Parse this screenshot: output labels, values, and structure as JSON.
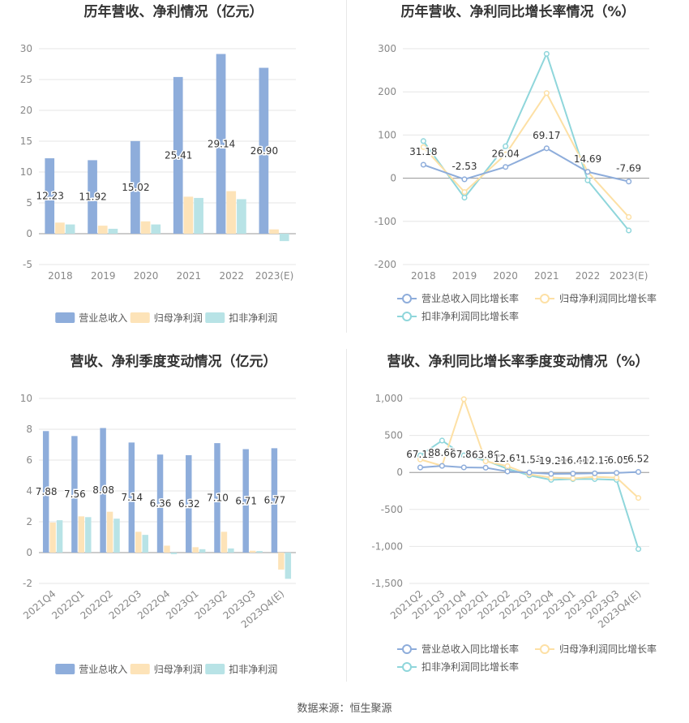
{
  "source": "数据来源：恒生聚源",
  "colors": {
    "revenue": "#8eaddb",
    "netprofit": "#fde3b8",
    "deducted": "#b8e3e6",
    "revenue_line": "#8eaddb",
    "netprofit_line": "#fde0a5",
    "deducted_line": "#8fd6db"
  },
  "chart_data": [
    {
      "type": "bar",
      "title": "历年营收、净利情况（亿元）",
      "categories": [
        "2018",
        "2019",
        "2020",
        "2021",
        "2022",
        "2023(E)"
      ],
      "series": [
        {
          "name": "营业总收入",
          "values": [
            12.23,
            11.92,
            15.02,
            25.41,
            29.14,
            26.9
          ]
        },
        {
          "name": "归母净利润",
          "values": [
            1.8,
            1.3,
            2.0,
            6.0,
            6.9,
            0.7
          ]
        },
        {
          "name": "扣非净利润",
          "values": [
            1.5,
            0.8,
            1.5,
            5.8,
            5.6,
            -1.2
          ]
        }
      ],
      "data_labels": [
        "12.23",
        "11.92",
        "15.02",
        "25.41",
        "29.14",
        "26.90"
      ],
      "ylim": [
        -5,
        30
      ],
      "yticks": [
        "-5",
        "0",
        "5",
        "10",
        "15",
        "20",
        "25",
        "30"
      ],
      "legend": "bottom"
    },
    {
      "type": "line",
      "title": "历年营收、净利同比增长率情况（%）",
      "categories": [
        "2018",
        "2019",
        "2020",
        "2021",
        "2022",
        "2023(E)"
      ],
      "series": [
        {
          "name": "营业总收入同比增长率",
          "values": [
            31.18,
            -2.53,
            26.04,
            69.17,
            14.69,
            -7.69
          ]
        },
        {
          "name": "归母净利润同比增长率",
          "values": [
            72,
            -32,
            55,
            197,
            15,
            -90
          ]
        },
        {
          "name": "扣非净利润同比增长率",
          "values": [
            86,
            -45,
            74,
            288,
            -5,
            -121
          ]
        }
      ],
      "data_labels": [
        "31.18",
        "-2.53",
        "26.04",
        "69.17",
        "14.69",
        "-7.69"
      ],
      "ylim": [
        -200,
        300
      ],
      "yticks": [
        "-200",
        "-100",
        "0",
        "100",
        "200",
        "300"
      ],
      "legend": "bottom"
    },
    {
      "type": "bar",
      "title": "营收、净利季度变动情况（亿元）",
      "categories": [
        "2021Q4",
        "2022Q1",
        "2022Q2",
        "2022Q3",
        "2022Q4",
        "2023Q1",
        "2023Q2",
        "2023Q3",
        "2023Q4(E)"
      ],
      "series": [
        {
          "name": "营业总收入",
          "values": [
            7.88,
            7.56,
            8.08,
            7.14,
            6.36,
            6.32,
            7.1,
            6.71,
            6.77
          ]
        },
        {
          "name": "归母净利润",
          "values": [
            1.95,
            2.35,
            2.65,
            1.35,
            0.45,
            0.35,
            1.35,
            0.12,
            -1.1
          ]
        },
        {
          "name": "扣非净利润",
          "values": [
            2.1,
            2.3,
            2.2,
            1.15,
            -0.1,
            0.22,
            0.27,
            0.1,
            -1.7
          ]
        }
      ],
      "data_labels": [
        "7.88",
        "7.56",
        "8.08",
        "7.14",
        "6.36",
        "6.32",
        "7.10",
        "6.71",
        "6.77"
      ],
      "ylim": [
        -2,
        10
      ],
      "yticks": [
        "-2",
        "0",
        "2",
        "4",
        "6",
        "8",
        "10"
      ],
      "legend": "bottom"
    },
    {
      "type": "line",
      "title": "营收、净利同比增长率季度变动情况（%）",
      "categories": [
        "2021Q2",
        "2021Q3",
        "2021Q4",
        "2022Q1",
        "2022Q2",
        "2022Q3",
        "2022Q4",
        "2023Q1",
        "2023Q2",
        "2023Q3",
        "2023Q4(E)"
      ],
      "series": [
        {
          "name": "营业总收入同比增长率",
          "values": [
            67.12,
            88.65,
            67.86,
            63.86,
            12.61,
            -1.53,
            -19.29,
            -16.4,
            -12.17,
            -6.05,
            6.52
          ]
        },
        {
          "name": "归母净利润同比增长率",
          "values": [
            175,
            90,
            990,
            150,
            85,
            -25,
            -70,
            -80,
            -60,
            -70,
            -345
          ]
        },
        {
          "name": "扣非净利润同比增长率",
          "values": [
            230,
            430,
            230,
            160,
            50,
            -40,
            -100,
            -90,
            -90,
            -100,
            -1035
          ]
        }
      ],
      "data_labels": [
        "67.12",
        "88.65",
        "67.86",
        "63.86",
        "12.61",
        "-1.53",
        "-19.29",
        "-16.40",
        "-12.17",
        "-6.05",
        "6.52"
      ],
      "ylim": [
        -1500,
        1000
      ],
      "yticks": [
        "-1,500",
        "-1,000",
        "-500",
        "0",
        "500",
        "1,000"
      ],
      "legend": "bottom"
    }
  ]
}
